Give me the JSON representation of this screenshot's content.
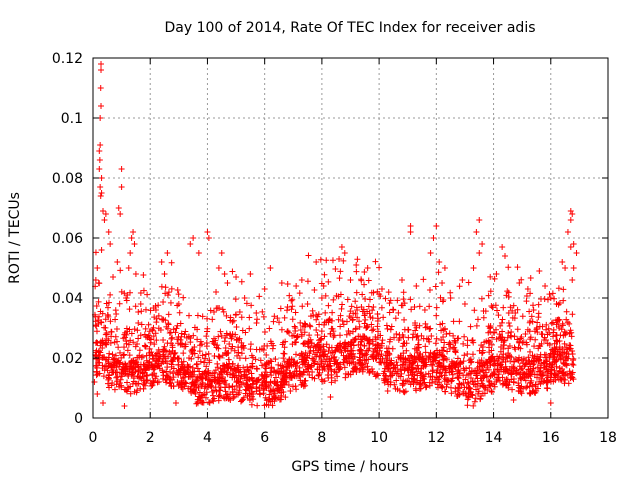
{
  "chart_data": {
    "type": "scatter",
    "title": "Day 100 of 2014, Rate Of TEC Index for receiver adis",
    "xlabel": "GPS time / hours",
    "ylabel": "ROTI / TECUs",
    "xlim": [
      0,
      18
    ],
    "ylim": [
      0,
      0.12
    ],
    "grid": true,
    "marker": "+",
    "x_ticks": [
      "0",
      "2",
      "4",
      "6",
      "8",
      "10",
      "12",
      "14",
      "16",
      "18"
    ],
    "y_ticks": [
      "0",
      "0.02",
      "0.04",
      "0.06",
      "0.08",
      "0.1",
      "0.12"
    ],
    "series": [
      {
        "name": "adis",
        "color": "#ff0000",
        "points": [
          [
            0.28,
            0.118
          ],
          [
            0.28,
            0.116
          ],
          [
            0.27,
            0.11
          ],
          [
            0.28,
            0.104
          ],
          [
            0.25,
            0.1
          ],
          [
            0.25,
            0.091
          ],
          [
            0.22,
            0.089
          ],
          [
            0.24,
            0.086
          ],
          [
            0.22,
            0.083
          ],
          [
            0.3,
            0.08
          ],
          [
            0.25,
            0.077
          ],
          [
            0.3,
            0.075
          ],
          [
            0.27,
            0.074
          ],
          [
            0.35,
            0.069
          ],
          [
            0.45,
            0.068
          ],
          [
            0.4,
            0.066
          ],
          [
            1.0,
            0.083
          ],
          [
            1.0,
            0.077
          ],
          [
            0.9,
            0.07
          ],
          [
            0.95,
            0.068
          ],
          [
            0.15,
            0.05
          ],
          [
            0.3,
            0.056
          ],
          [
            0.2,
            0.045
          ],
          [
            0.55,
            0.062
          ],
          [
            0.6,
            0.058
          ],
          [
            0.85,
            0.052
          ],
          [
            0.1,
            0.046
          ],
          [
            1.4,
            0.062
          ],
          [
            1.35,
            0.06
          ],
          [
            1.45,
            0.058
          ],
          [
            1.3,
            0.055
          ],
          [
            1.25,
            0.05
          ],
          [
            1.5,
            0.048
          ],
          [
            2.6,
            0.055
          ],
          [
            2.4,
            0.052
          ],
          [
            2.5,
            0.048
          ],
          [
            3.5,
            0.06
          ],
          [
            3.4,
            0.058
          ],
          [
            3.7,
            0.055
          ],
          [
            4.0,
            0.062
          ],
          [
            4.05,
            0.06
          ],
          [
            4.5,
            0.055
          ],
          [
            4.4,
            0.05
          ],
          [
            4.6,
            0.048
          ],
          [
            4.7,
            0.045
          ],
          [
            4.3,
            0.042
          ],
          [
            5.0,
            0.047
          ],
          [
            5.5,
            0.048
          ],
          [
            6.2,
            0.05
          ],
          [
            6.0,
            0.043
          ],
          [
            6.6,
            0.045
          ],
          [
            7.3,
            0.046
          ],
          [
            7.1,
            0.044
          ],
          [
            7.8,
            0.052
          ],
          [
            8.0,
            0.04
          ],
          [
            8.7,
            0.057
          ],
          [
            8.8,
            0.055
          ],
          [
            8.6,
            0.053
          ],
          [
            9.2,
            0.051
          ],
          [
            9.0,
            0.046
          ],
          [
            9.6,
            0.05
          ],
          [
            10.1,
            0.043
          ],
          [
            11.1,
            0.064
          ],
          [
            11.1,
            0.062
          ],
          [
            10.8,
            0.046
          ],
          [
            11.3,
            0.044
          ],
          [
            12.0,
            0.064
          ],
          [
            11.9,
            0.06
          ],
          [
            11.8,
            0.055
          ],
          [
            12.1,
            0.052
          ],
          [
            12.3,
            0.05
          ],
          [
            12.2,
            0.045
          ],
          [
            12.5,
            0.04
          ],
          [
            13.5,
            0.066
          ],
          [
            13.4,
            0.062
          ],
          [
            13.6,
            0.058
          ],
          [
            13.5,
            0.055
          ],
          [
            13.3,
            0.05
          ],
          [
            14.3,
            0.057
          ],
          [
            14.4,
            0.054
          ],
          [
            14.1,
            0.048
          ],
          [
            14.9,
            0.045
          ],
          [
            15.2,
            0.043
          ],
          [
            15.6,
            0.049
          ],
          [
            15.8,
            0.044
          ],
          [
            16.0,
            0.04
          ],
          [
            16.4,
            0.052
          ],
          [
            16.5,
            0.05
          ],
          [
            16.7,
            0.069
          ],
          [
            16.75,
            0.068
          ],
          [
            16.7,
            0.066
          ],
          [
            16.6,
            0.062
          ],
          [
            16.8,
            0.058
          ],
          [
            16.7,
            0.057
          ],
          [
            16.9,
            0.055
          ],
          [
            16.8,
            0.05
          ],
          [
            16.75,
            0.046
          ],
          [
            0.7,
            0.047
          ],
          [
            1.2,
            0.041
          ],
          [
            2.2,
            0.036
          ],
          [
            3.0,
            0.038
          ],
          [
            5.3,
            0.04
          ],
          [
            7.5,
            0.038
          ],
          [
            9.8,
            0.037
          ],
          [
            10.5,
            0.036
          ],
          [
            13.0,
            0.038
          ],
          [
            15.4,
            0.036
          ],
          [
            6.8,
            0.037
          ],
          [
            11.6,
            0.036
          ],
          [
            16.2,
            0.038
          ],
          [
            0.05,
            0.012
          ],
          [
            0.15,
            0.008
          ],
          [
            0.35,
            0.005
          ],
          [
            1.1,
            0.004
          ],
          [
            2.9,
            0.005
          ],
          [
            4.8,
            0.006
          ],
          [
            8.3,
            0.007
          ],
          [
            10.3,
            0.009
          ],
          [
            14.7,
            0.006
          ],
          [
            16.0,
            0.005
          ]
        ]
      }
    ]
  }
}
